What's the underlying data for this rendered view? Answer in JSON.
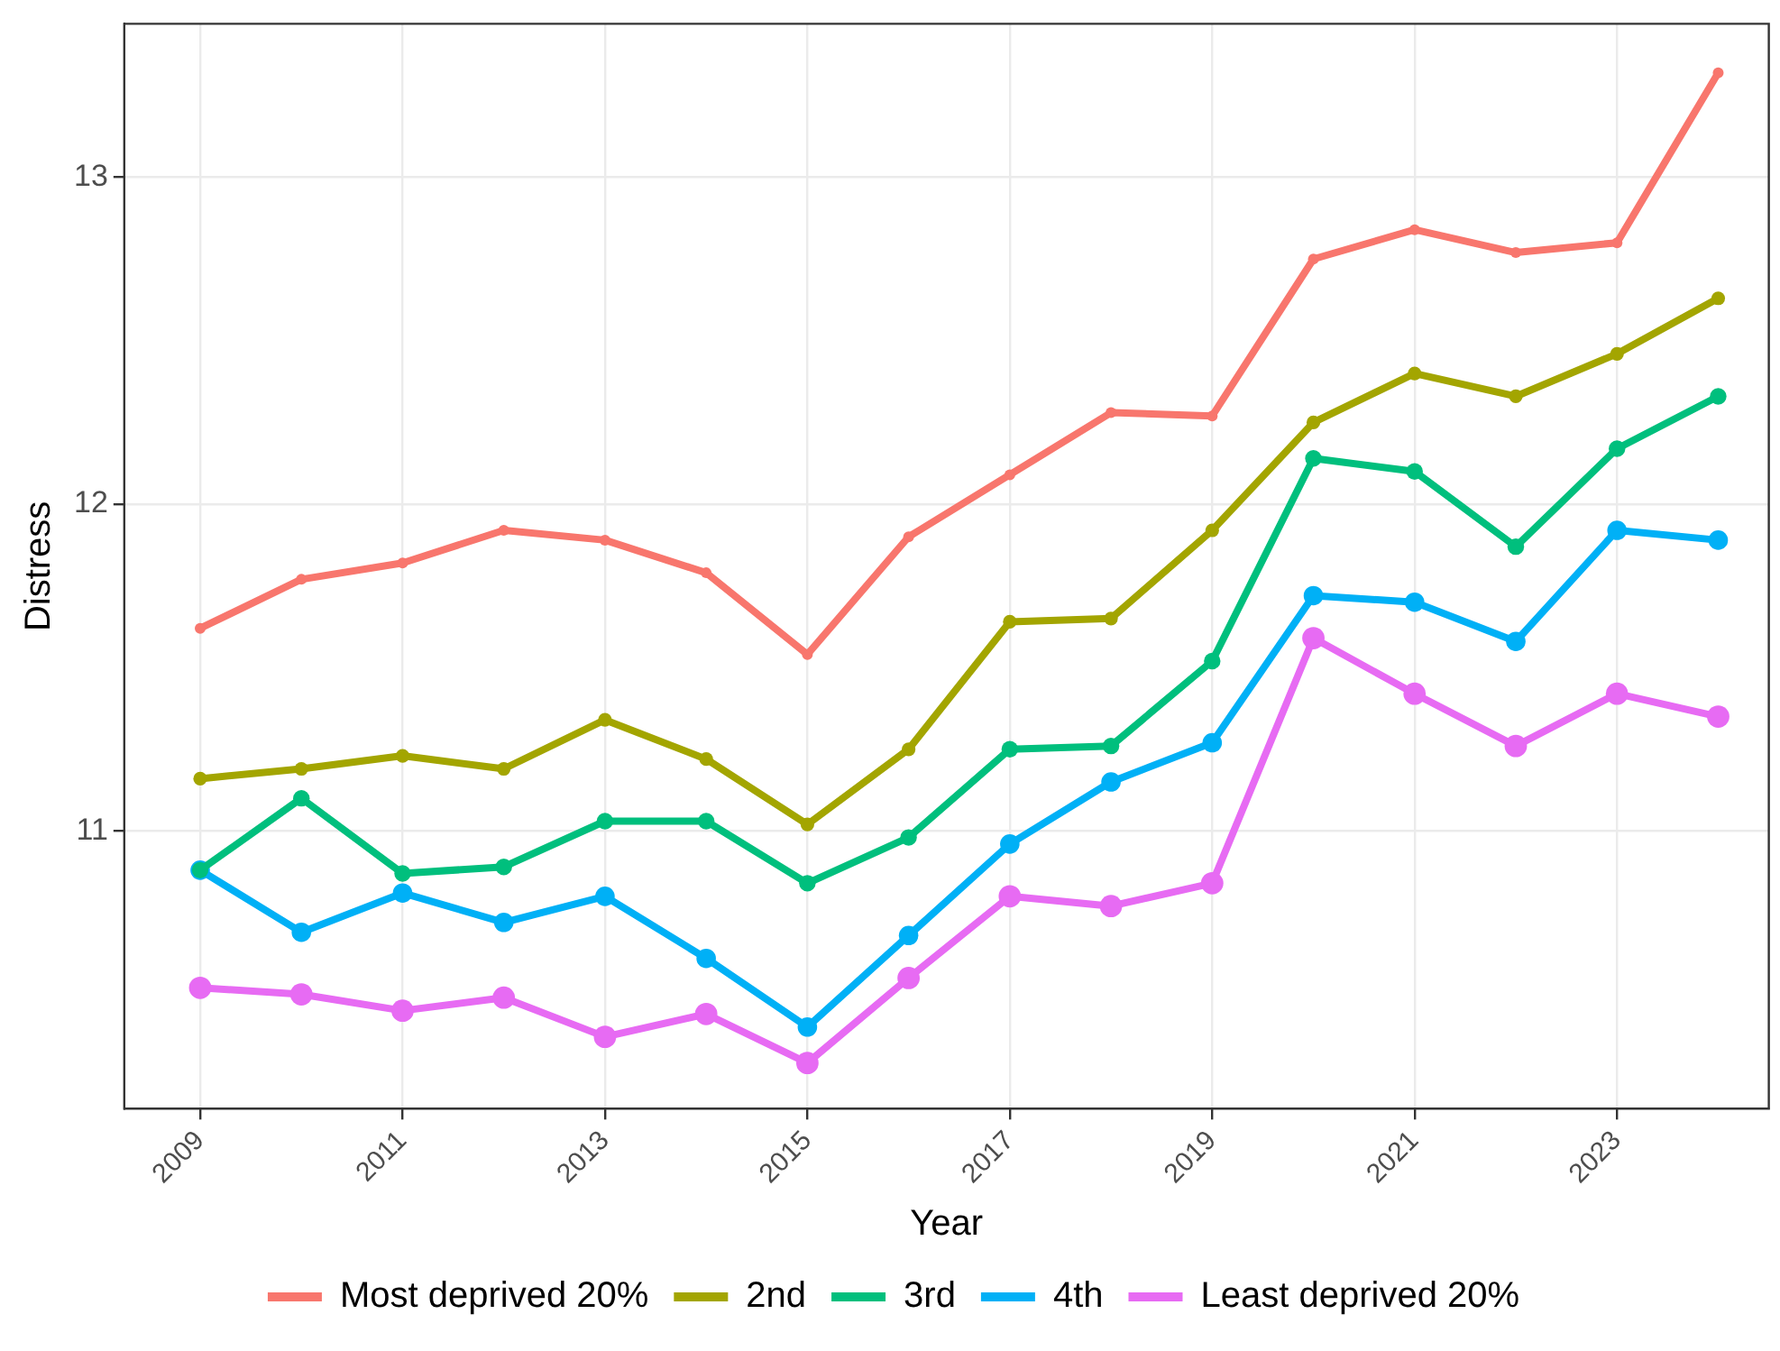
{
  "chart_data": {
    "type": "line",
    "xlabel": "Year",
    "ylabel": "Distress",
    "x": [
      2009,
      2010,
      2011,
      2012,
      2013,
      2014,
      2015,
      2016,
      2017,
      2018,
      2019,
      2020,
      2021,
      2022,
      2023,
      2024
    ],
    "series": [
      {
        "name": "Most deprived 20%",
        "color": "#f8766d",
        "values": [
          11.62,
          11.77,
          11.82,
          11.92,
          11.89,
          11.79,
          11.54,
          11.9,
          12.09,
          12.28,
          12.27,
          12.75,
          12.84,
          12.77,
          12.8,
          13.32
        ]
      },
      {
        "name": "2nd",
        "color": "#a3a500",
        "values": [
          11.16,
          11.19,
          11.23,
          11.19,
          11.34,
          11.22,
          11.02,
          11.25,
          11.64,
          11.65,
          11.92,
          12.25,
          12.4,
          12.33,
          12.46,
          12.63
        ]
      },
      {
        "name": "3rd",
        "color": "#00bf7d",
        "values": [
          10.88,
          11.1,
          10.87,
          10.89,
          11.03,
          11.03,
          10.84,
          10.98,
          11.25,
          11.26,
          11.52,
          12.14,
          12.1,
          11.87,
          12.17,
          12.33
        ]
      },
      {
        "name": "4th",
        "color": "#00b0f6",
        "values": [
          10.88,
          10.69,
          10.81,
          10.72,
          10.8,
          10.61,
          10.4,
          10.68,
          10.96,
          11.15,
          11.27,
          11.72,
          11.7,
          11.58,
          11.92,
          11.89
        ]
      },
      {
        "name": "Least deprived 20%",
        "color": "#e76bf3",
        "values": [
          10.52,
          10.5,
          10.45,
          10.49,
          10.37,
          10.44,
          10.29,
          10.55,
          10.8,
          10.77,
          10.84,
          11.59,
          11.42,
          11.26,
          11.42,
          11.35
        ]
      }
    ],
    "xlim": [
      2008.25,
      2024.5
    ],
    "xticks": [
      2009,
      2011,
      2013,
      2015,
      2017,
      2019,
      2021,
      2023
    ],
    "ylim": [
      10.15,
      13.47
    ],
    "yticks": [
      11,
      12,
      13
    ],
    "grid": true,
    "legend": "bottom",
    "marker": "circle",
    "line_style": "solid"
  }
}
